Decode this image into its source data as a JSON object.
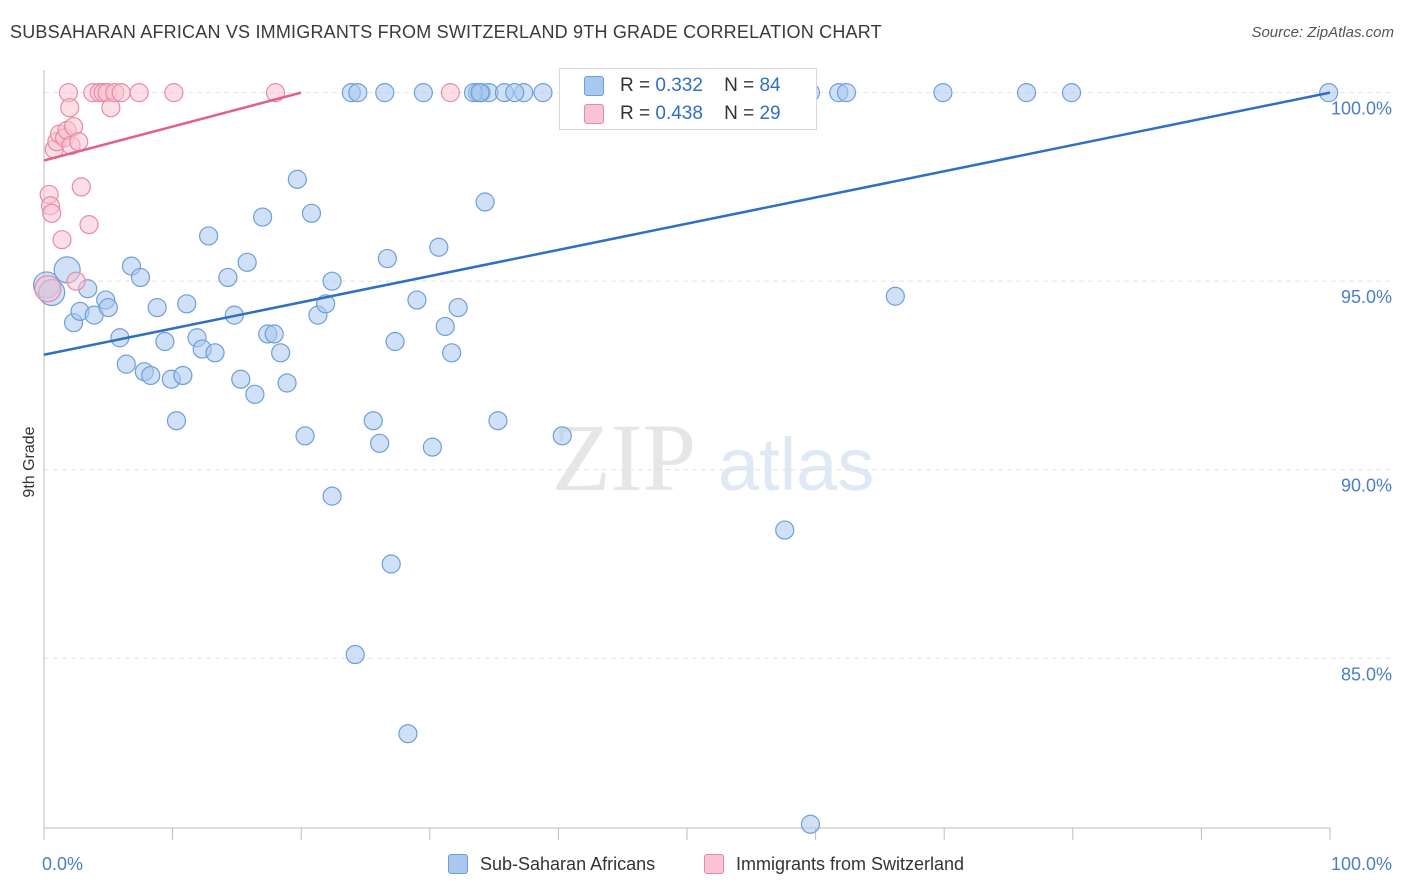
{
  "title": "SUBSAHARAN AFRICAN VS IMMIGRANTS FROM SWITZERLAND 9TH GRADE CORRELATION CHART",
  "source": "Source: ZipAtlas.com",
  "watermark": {
    "zip": "ZIP",
    "atlas": "atlas"
  },
  "colors": {
    "blue_fill": "#a9c8f0",
    "blue_stroke": "#6d9fd8",
    "blue_line": "#2f6fc4",
    "pink_fill": "#f8c3d2",
    "pink_stroke": "#e88aa6",
    "pink_line": "#e0628a",
    "grid": "#e2e2e2",
    "tick_label": "#4a7fc8"
  },
  "stats": [
    {
      "r_label": "R =",
      "r_value": "0.332",
      "n_label": "N =",
      "n_value": "84",
      "color": "blue"
    },
    {
      "r_label": "R =",
      "r_value": "0.438",
      "n_label": "N =",
      "n_value": "29",
      "color": "pink"
    }
  ],
  "chart_data": {
    "type": "scatter",
    "title": "SUBSAHARAN AFRICAN VS IMMIGRANTS FROM SWITZERLAND 9TH GRADE CORRELATION CHART",
    "xlabel": "",
    "ylabel": "9th Grade",
    "xlim": [
      0,
      100
    ],
    "ylim": [
      80.5,
      100.6
    ],
    "x_tick_labels": [
      "0.0%",
      "100.0%"
    ],
    "y_ticks": [
      85,
      90,
      95,
      100
    ],
    "y_tick_labels": [
      "85.0%",
      "90.0%",
      "95.0%",
      "100.0%"
    ],
    "grid": true,
    "legend_position": "bottom",
    "series": [
      {
        "name": "Sub-Saharan Africans",
        "color": "blue",
        "trend": {
          "x": [
            0,
            100
          ],
          "y": [
            93.05,
            100.0
          ]
        },
        "points": [
          [
            0.2,
            94.9
          ],
          [
            0.6,
            94.7
          ],
          [
            1.8,
            95.3
          ],
          [
            2.3,
            93.9
          ],
          [
            2.8,
            94.2
          ],
          [
            3.4,
            94.8
          ],
          [
            3.9,
            94.1
          ],
          [
            4.8,
            94.5
          ],
          [
            5.0,
            94.3
          ],
          [
            5.9,
            93.5
          ],
          [
            6.4,
            92.8
          ],
          [
            6.8,
            95.4
          ],
          [
            7.5,
            95.1
          ],
          [
            7.8,
            92.6
          ],
          [
            8.3,
            92.5
          ],
          [
            8.8,
            94.3
          ],
          [
            9.4,
            93.4
          ],
          [
            9.9,
            92.4
          ],
          [
            10.3,
            91.3
          ],
          [
            10.8,
            92.5
          ],
          [
            11.1,
            94.4
          ],
          [
            11.9,
            93.5
          ],
          [
            12.3,
            93.2
          ],
          [
            12.8,
            96.2
          ],
          [
            13.3,
            93.1
          ],
          [
            14.3,
            95.1
          ],
          [
            14.8,
            94.1
          ],
          [
            15.3,
            92.4
          ],
          [
            15.8,
            95.5
          ],
          [
            16.4,
            92.0
          ],
          [
            17.0,
            96.7
          ],
          [
            17.4,
            93.6
          ],
          [
            17.9,
            93.6
          ],
          [
            18.4,
            93.1
          ],
          [
            18.9,
            92.3
          ],
          [
            19.7,
            97.7
          ],
          [
            20.3,
            90.9
          ],
          [
            20.8,
            96.8
          ],
          [
            21.3,
            94.1
          ],
          [
            21.9,
            94.4
          ],
          [
            22.4,
            95.0
          ],
          [
            23.9,
            100.0
          ],
          [
            24.4,
            100.0
          ],
          [
            27.0,
            87.5
          ],
          [
            25.6,
            91.3
          ],
          [
            26.1,
            90.7
          ],
          [
            26.7,
            95.6
          ],
          [
            27.3,
            93.4
          ],
          [
            29.0,
            94.5
          ],
          [
            26.5,
            100.0
          ],
          [
            29.5,
            100.0
          ],
          [
            30.2,
            90.6
          ],
          [
            30.7,
            95.9
          ],
          [
            31.2,
            93.8
          ],
          [
            31.7,
            93.1
          ],
          [
            32.2,
            94.3
          ],
          [
            33.7,
            100.0
          ],
          [
            34.0,
            100.0
          ],
          [
            34.3,
            97.1
          ],
          [
            34.6,
            100.0
          ],
          [
            35.3,
            91.3
          ],
          [
            35.8,
            100.0
          ],
          [
            37.3,
            100.0
          ],
          [
            40.3,
            90.9
          ],
          [
            42.8,
            100.0
          ],
          [
            47.3,
            100.0
          ],
          [
            57.6,
            88.4
          ],
          [
            59.6,
            80.6
          ],
          [
            59.6,
            100.0
          ],
          [
            61.8,
            100.0
          ],
          [
            62.4,
            100.0
          ],
          [
            66.2,
            94.6
          ],
          [
            69.9,
            100.0
          ],
          [
            76.4,
            100.0
          ],
          [
            79.9,
            100.0
          ],
          [
            99.9,
            100.0
          ],
          [
            22.4,
            89.3
          ],
          [
            24.2,
            85.1
          ],
          [
            28.3,
            83.0
          ],
          [
            36.6,
            100.0
          ],
          [
            38.8,
            100.0
          ],
          [
            41.3,
            100.0
          ],
          [
            33.4,
            100.0
          ],
          [
            33.9,
            100.0
          ]
        ]
      },
      {
        "name": "Immigrants from Switzerland",
        "color": "pink",
        "trend": {
          "x": [
            0,
            20
          ],
          "y": [
            98.2,
            100.0
          ]
        },
        "points": [
          [
            0.3,
            94.8
          ],
          [
            0.4,
            97.3
          ],
          [
            0.5,
            97.0
          ],
          [
            0.6,
            96.8
          ],
          [
            0.8,
            98.5
          ],
          [
            1.0,
            98.7
          ],
          [
            1.2,
            98.9
          ],
          [
            1.4,
            96.1
          ],
          [
            1.6,
            98.8
          ],
          [
            1.8,
            99.0
          ],
          [
            1.9,
            100.0
          ],
          [
            2.0,
            99.6
          ],
          [
            2.1,
            98.6
          ],
          [
            2.3,
            99.1
          ],
          [
            2.5,
            95.0
          ],
          [
            2.7,
            98.7
          ],
          [
            2.9,
            97.5
          ],
          [
            3.5,
            96.5
          ],
          [
            3.8,
            100.0
          ],
          [
            4.3,
            100.0
          ],
          [
            4.6,
            100.0
          ],
          [
            4.9,
            100.0
          ],
          [
            5.2,
            99.6
          ],
          [
            5.5,
            100.0
          ],
          [
            6.0,
            100.0
          ],
          [
            7.4,
            100.0
          ],
          [
            10.1,
            100.0
          ],
          [
            18.0,
            100.0
          ],
          [
            31.6,
            100.0
          ]
        ]
      }
    ]
  }
}
